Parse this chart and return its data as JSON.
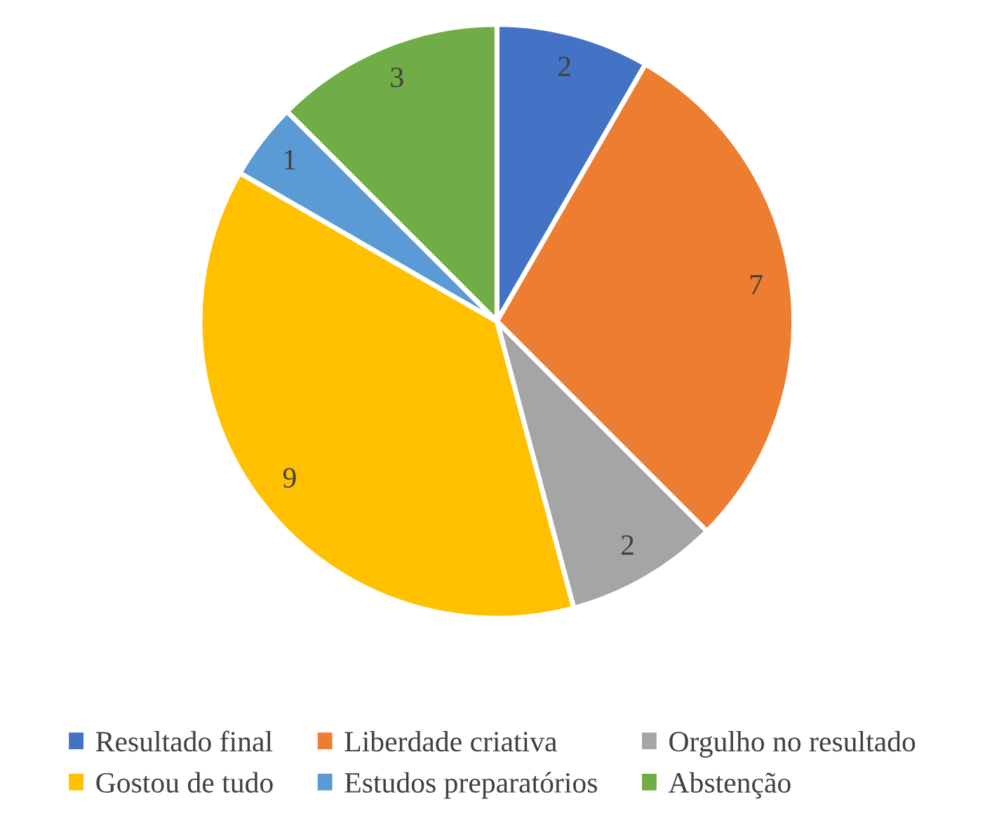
{
  "chart_data": {
    "type": "pie",
    "categories": [
      "Resultado final",
      "Liberdade criativa",
      "Orgulho no resultado",
      "Gostou de tudo",
      "Estudos preparatórios",
      "Abstenção"
    ],
    "values": [
      2,
      7,
      2,
      9,
      1,
      3
    ],
    "colors": [
      "#4472c4",
      "#ed7d31",
      "#a5a5a5",
      "#ffc000",
      "#5b9bd5",
      "#70ad47"
    ],
    "data_labels": true,
    "legend": "bottom"
  }
}
